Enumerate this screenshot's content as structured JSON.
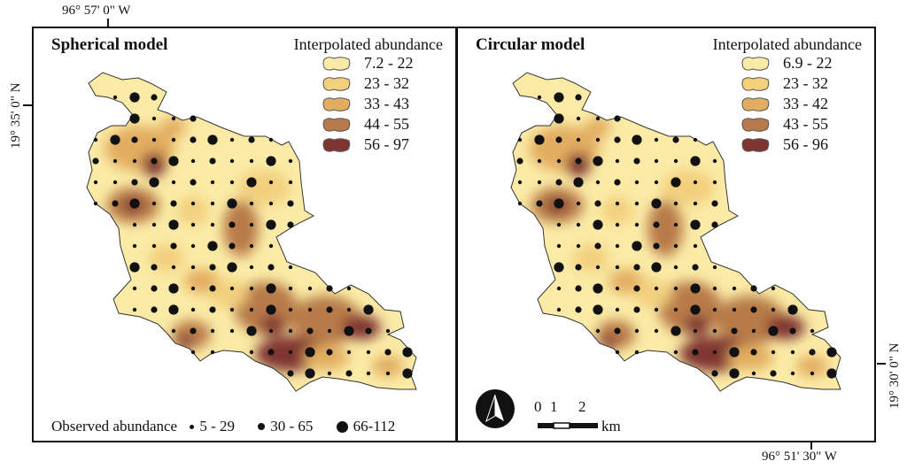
{
  "coords": {
    "top_lon": "96° 57' 0\" W",
    "left_lat": "19° 35' 0\" N",
    "right_lat": "19° 30' 0\" N",
    "bottom_lon": "96° 51' 30\" W"
  },
  "panels": [
    {
      "title": "Spherical model",
      "legend_title": "Interpolated abundance",
      "classes": [
        "7.2 - 22",
        "23 - 32",
        "33 - 43",
        "44 - 55",
        "56 - 97"
      ]
    },
    {
      "title": "Circular model",
      "legend_title": "Interpolated abundance",
      "classes": [
        "6.9 - 22",
        "23 - 32",
        "33 - 42",
        "43 - 55",
        "56 - 96"
      ]
    }
  ],
  "class_colors": [
    "#fbeba6",
    "#f2d07e",
    "#e2ad61",
    "#b87a4a",
    "#7f3633"
  ],
  "observed": {
    "label": "Observed abundance",
    "classes": [
      "5 - 29",
      "30 - 65",
      "66-112"
    ]
  },
  "scale": {
    "ticks": [
      "0",
      "1",
      "2"
    ],
    "unit": "km"
  },
  "north_arrow": "north-arrow"
}
